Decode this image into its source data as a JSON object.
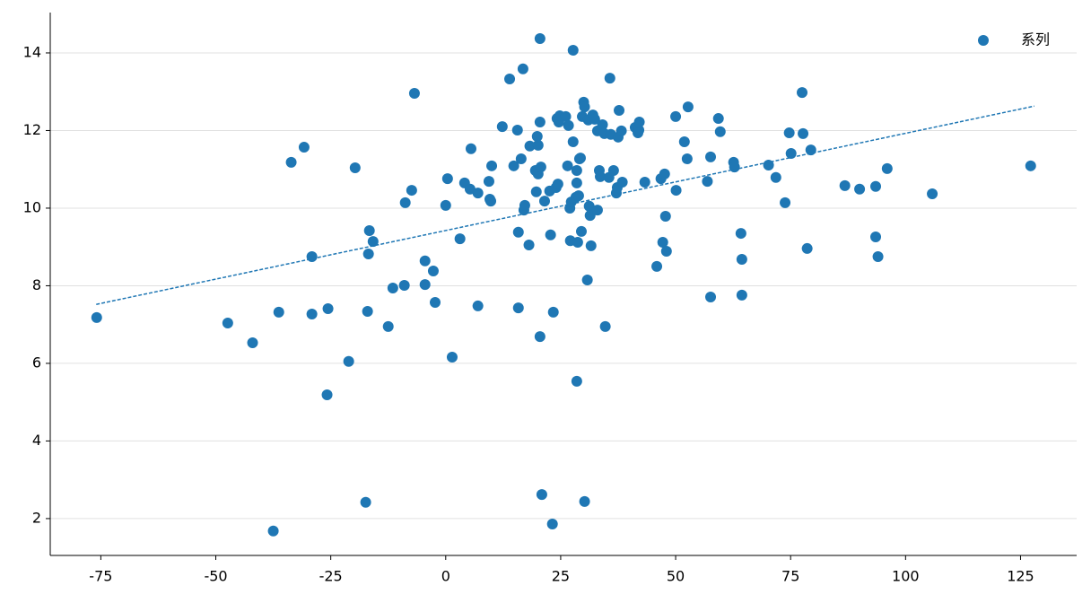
{
  "chart_data": {
    "type": "scatter",
    "series": [
      {
        "name": "系列",
        "color": "#1f77b4",
        "x": [
          -75.9,
          -47.4,
          -42.0,
          -37.5,
          -36.3,
          -33.6,
          -30.8,
          -29.1,
          -29.1,
          -25.8,
          -25.6,
          -21.1,
          -19.7,
          -17.4,
          -17.0,
          -16.8,
          -16.6,
          -15.8,
          -12.5,
          -11.5,
          -9.0,
          -8.8,
          -7.4,
          -6.8,
          -4.5,
          -4.5,
          -2.7,
          -2.3,
          0,
          0.4,
          1.4,
          3.1,
          4.1,
          5.3,
          5.5,
          7.0,
          7.0,
          9.4,
          9.6,
          10.0,
          9.8,
          12.3,
          13.9,
          14.8,
          15.6,
          15.8,
          15.8,
          16.4,
          16.8,
          17.0,
          17.2,
          18.1,
          18.3,
          19.5,
          19.7,
          19.9,
          20.1,
          20.1,
          20.5,
          20.5,
          20.5,
          20.7,
          20.9,
          21.5,
          22.6,
          22.8,
          23.2,
          23.4,
          24.0,
          24.2,
          24.4,
          24.6,
          24.8,
          26.1,
          26.5,
          26.7,
          27.0,
          27.1,
          27.3,
          27.7,
          27.7,
          28.3,
          28.5,
          28.5,
          28.5,
          28.7,
          28.9,
          29.1,
          29.3,
          29.5,
          29.7,
          30.0,
          30.2,
          30.2,
          30.8,
          31.0,
          31.2,
          31.4,
          31.6,
          32.0,
          32.4,
          33.0,
          33.0,
          33.4,
          33.6,
          34.1,
          34.5,
          34.7,
          35.5,
          35.7,
          35.9,
          36.5,
          37.1,
          37.3,
          37.5,
          37.7,
          38.2,
          38.4,
          41.2,
          42.0,
          42.1,
          41.8,
          43.3,
          45.9,
          46.8,
          47.2,
          47.6,
          47.8,
          48.0,
          50.0,
          50.1,
          51.9,
          52.7,
          52.5,
          56.9,
          57.6,
          57.6,
          59.3,
          59.7,
          62.6,
          62.8,
          64.2,
          64.4,
          64.4,
          70.2,
          71.8,
          73.8,
          74.7,
          75.1,
          77.5,
          77.7,
          78.6,
          79.4,
          86.8,
          90.0,
          93.5,
          93.5,
          94.0,
          96.0,
          105.8,
          127.2
        ],
        "y": [
          7.18,
          7.04,
          6.53,
          1.68,
          7.32,
          11.18,
          11.57,
          8.75,
          7.27,
          5.19,
          7.41,
          6.05,
          11.04,
          2.42,
          7.34,
          8.82,
          9.42,
          9.14,
          6.95,
          7.94,
          8.01,
          10.14,
          10.46,
          12.96,
          8.64,
          8.03,
          8.38,
          7.57,
          10.07,
          10.76,
          6.16,
          9.21,
          10.65,
          10.49,
          11.53,
          10.39,
          7.48,
          10.69,
          10.23,
          11.09,
          10.18,
          12.1,
          13.33,
          11.09,
          12.01,
          9.38,
          7.43,
          11.27,
          13.59,
          9.95,
          10.07,
          9.05,
          11.6,
          10.97,
          10.42,
          11.85,
          11.62,
          10.88,
          14.37,
          12.22,
          6.69,
          11.06,
          2.62,
          10.18,
          10.44,
          9.31,
          1.86,
          7.32,
          10.53,
          12.31,
          10.62,
          12.22,
          12.38,
          12.36,
          11.09,
          12.13,
          10.0,
          9.16,
          10.16,
          11.71,
          14.07,
          10.28,
          10.65,
          10.97,
          5.54,
          9.12,
          10.32,
          11.27,
          11.29,
          9.4,
          12.36,
          12.73,
          12.61,
          2.44,
          8.15,
          12.27,
          10.05,
          9.81,
          9.03,
          12.4,
          12.29,
          11.99,
          9.95,
          10.97,
          10.81,
          12.15,
          11.92,
          6.95,
          10.79,
          13.35,
          11.9,
          10.97,
          10.39,
          10.53,
          11.83,
          12.52,
          11.99,
          10.67,
          12.08,
          12.01,
          12.22,
          11.94,
          10.67,
          8.5,
          10.76,
          9.12,
          10.88,
          9.79,
          8.89,
          12.36,
          10.46,
          11.71,
          12.61,
          11.27,
          10.69,
          11.32,
          7.71,
          12.31,
          11.97,
          11.18,
          11.06,
          9.35,
          8.68,
          7.76,
          11.11,
          10.79,
          10.14,
          11.94,
          11.41,
          12.98,
          11.92,
          8.96,
          11.5,
          10.58,
          10.49,
          10.56,
          9.26,
          8.75,
          11.02,
          10.37,
          11.09
        ]
      }
    ],
    "trendline": {
      "x": [
        -76,
        128
      ],
      "y": [
        7.52,
        12.63
      ],
      "color": "#1f77b4"
    },
    "xlim": [
      -86,
      137.2
    ],
    "xticks": [
      -75,
      -50,
      -25,
      0,
      25,
      50,
      75,
      100,
      125
    ],
    "ylim": [
      1.05,
      15.04
    ],
    "yticks": [
      2,
      4,
      6,
      8,
      10,
      12,
      14
    ],
    "grid": true,
    "legend": "upper right"
  }
}
